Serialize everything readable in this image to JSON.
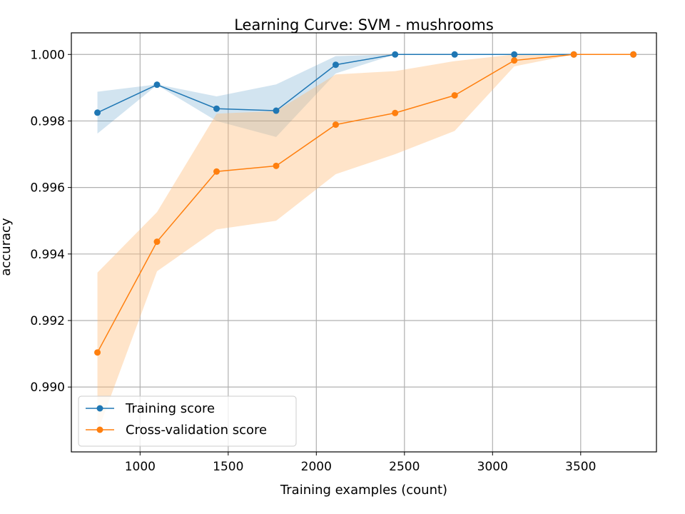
{
  "chart_data": {
    "type": "line",
    "title": "Learning Curve: SVM - mushrooms",
    "xlabel": "Training examples (count)",
    "ylabel": "accuracy",
    "xlim": [
      610,
      3930
    ],
    "ylim": [
      0.98805,
      1.00065
    ],
    "xticks": [
      1000,
      1500,
      2000,
      2500,
      3000,
      3500
    ],
    "yticks": [
      0.99,
      0.992,
      0.994,
      0.996,
      0.998,
      1.0
    ],
    "ytick_labels": [
      "0.990",
      "0.992",
      "0.994",
      "0.996",
      "0.998",
      "1.000"
    ],
    "grid": true,
    "legend_position": "lower-left",
    "x": [
      758,
      1096,
      1434,
      1772,
      2110,
      2447,
      2785,
      3123,
      3461,
      3799
    ],
    "series": [
      {
        "name": "Training score",
        "color": "#1f77b4",
        "band_color": "#1f77b4",
        "values": [
          0.99825,
          0.99909,
          0.99837,
          0.99831,
          0.99969,
          1.0,
          1.0,
          1.0,
          1.0,
          1.0
        ],
        "upper": [
          0.99888,
          0.9991,
          0.99874,
          0.9991,
          0.99995,
          1.0,
          1.0,
          1.0,
          1.0,
          1.0
        ],
        "lower": [
          0.99762,
          0.99908,
          0.998,
          0.99752,
          0.99943,
          1.0,
          1.0,
          1.0,
          1.0,
          1.0
        ]
      },
      {
        "name": "Cross-validation score",
        "color": "#ff7f0e",
        "band_color": "#ffbb78",
        "values": [
          0.99104,
          0.99437,
          0.99648,
          0.99665,
          0.99789,
          0.99824,
          0.99877,
          0.99982,
          1.0,
          1.0
        ],
        "upper": [
          0.99344,
          0.99526,
          0.99822,
          0.9983,
          0.9994,
          0.9995,
          0.9998,
          1.0,
          1.0,
          1.0
        ],
        "lower": [
          0.98864,
          0.99348,
          0.99474,
          0.995,
          0.9964,
          0.997,
          0.9977,
          0.99964,
          1.0,
          1.0
        ]
      }
    ]
  }
}
